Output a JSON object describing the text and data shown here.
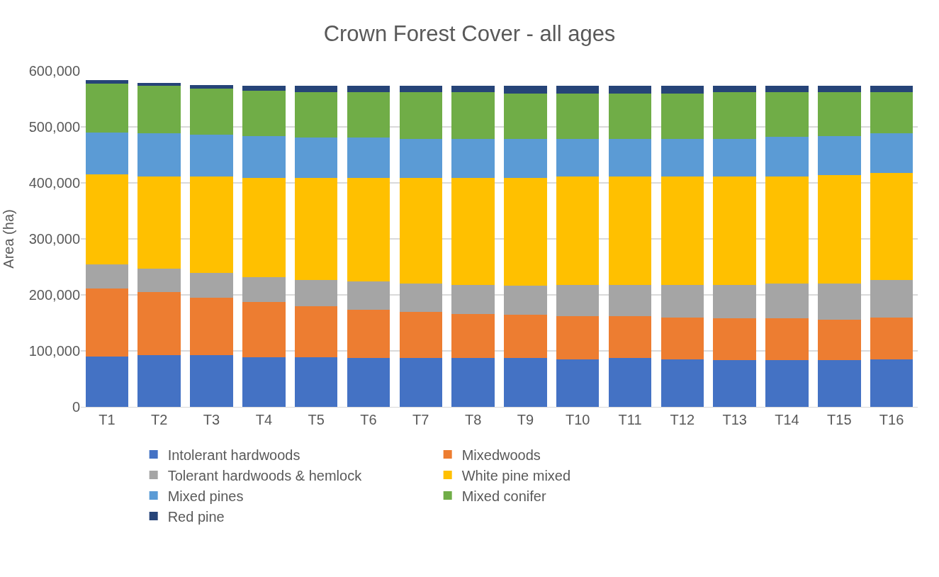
{
  "chart_data": {
    "type": "bar",
    "stacked": true,
    "title": "Crown Forest Cover - all ages",
    "ylabel": "Area (ha)",
    "categories": [
      "T1",
      "T2",
      "T3",
      "T4",
      "T5",
      "T6",
      "T7",
      "T8",
      "T9",
      "T10",
      "T11",
      "T12",
      "T13",
      "T14",
      "T15",
      "T16"
    ],
    "ylim": [
      0,
      600000
    ],
    "yticks": [
      {
        "value": 0,
        "label": "0"
      },
      {
        "value": 100000,
        "label": "100,000"
      },
      {
        "value": 200000,
        "label": "200,000"
      },
      {
        "value": 300000,
        "label": "300,000"
      },
      {
        "value": 400000,
        "label": "400,000"
      },
      {
        "value": 500000,
        "label": "500,000"
      },
      {
        "value": 600000,
        "label": "600,000"
      }
    ],
    "grid": "y",
    "legend": "bottom",
    "series": [
      {
        "name": "Intolerant hardwoods",
        "color": "#4472c4",
        "values": [
          90000,
          92000,
          92000,
          89000,
          89000,
          87000,
          87000,
          87000,
          87000,
          85000,
          87000,
          85000,
          83000,
          83000,
          83000,
          85000
        ]
      },
      {
        "name": "Mixedwoods",
        "color": "#ed7d31",
        "values": [
          122000,
          113000,
          103000,
          98000,
          91000,
          87000,
          83000,
          79000,
          77000,
          77000,
          75000,
          75000,
          75000,
          75000,
          73000,
          75000
        ]
      },
      {
        "name": "Tolerant hardwoods & hemlock",
        "color": "#a5a5a5",
        "values": [
          43000,
          42000,
          44000,
          45000,
          46000,
          50000,
          50000,
          52000,
          52000,
          56000,
          56000,
          58000,
          60000,
          62000,
          64000,
          66000
        ]
      },
      {
        "name": "White pine mixed",
        "color": "#ffc000",
        "values": [
          160000,
          164000,
          172000,
          177000,
          183000,
          185000,
          189000,
          191000,
          193000,
          193000,
          193000,
          193000,
          194000,
          192000,
          194000,
          192000
        ]
      },
      {
        "name": "Mixed pines",
        "color": "#5b9bd5",
        "values": [
          75000,
          77000,
          75000,
          74000,
          72000,
          72000,
          70000,
          70000,
          70000,
          68000,
          68000,
          68000,
          67000,
          70000,
          69000,
          70000
        ]
      },
      {
        "name": "Mixed conifer",
        "color": "#70ad47",
        "values": [
          87000,
          85000,
          82000,
          81000,
          81000,
          81000,
          83000,
          83000,
          81000,
          81000,
          81000,
          81000,
          83000,
          80000,
          79000,
          74000
        ]
      },
      {
        "name": "Red pine",
        "color": "#264478",
        "values": [
          6000,
          6000,
          7000,
          9000,
          11000,
          11000,
          11000,
          11000,
          13000,
          13000,
          13000,
          13000,
          11000,
          11000,
          11000,
          11000
        ]
      }
    ]
  }
}
